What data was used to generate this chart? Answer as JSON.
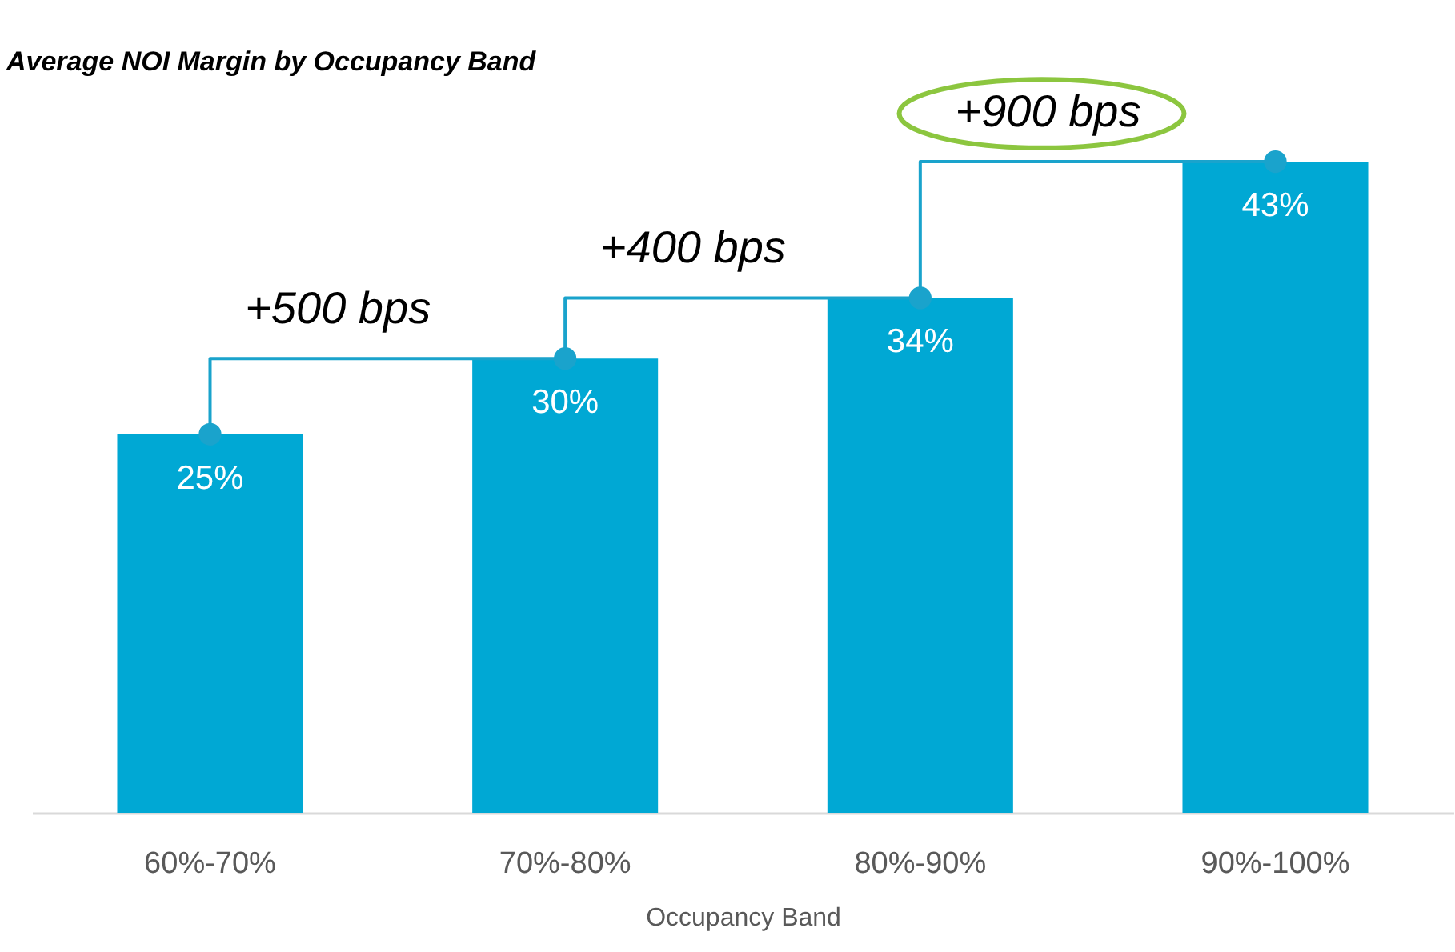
{
  "chart_data": {
    "type": "bar",
    "title": "Average NOI Margin by Occupancy Band",
    "xlabel": "Occupancy Band",
    "categories": [
      "60%-70%",
      "70%-80%",
      "80%-90%",
      "90%-100%"
    ],
    "series": [
      {
        "color": "#00a8d4",
        "values": [
          25,
          30,
          34,
          43
        ],
        "value_labels": [
          "25%",
          "30%",
          "34%",
          "43%"
        ]
      },
      {
        "type": "step",
        "color": "#1aa3cc",
        "values": [
          25,
          30,
          34,
          43
        ],
        "marker": "circle"
      }
    ],
    "annotations": [
      "+500 bps",
      "+400 bps",
      "+900 bps"
    ],
    "grid": false
  }
}
